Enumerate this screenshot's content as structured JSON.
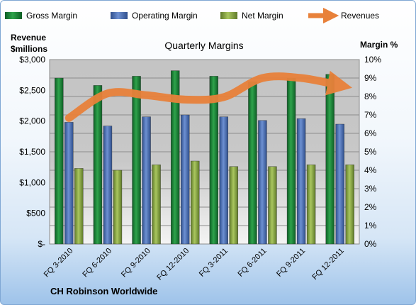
{
  "chart_data": {
    "type": "bar",
    "title": "Quarterly Margins",
    "footer": "CH Robinson Worldwide",
    "left_axis_title": [
      "Revenue",
      "$millions"
    ],
    "right_axis_title": "Margin %",
    "categories": [
      "FQ 3-2010",
      "FQ 6-2010",
      "FQ 9-2010",
      "FQ 12-2010",
      "FQ 3-2011",
      "FQ 6-2011",
      "FQ 9-2011",
      "FQ 12-2011"
    ],
    "left_ticks": [
      "$-",
      "$500",
      "$1,000",
      "$1,500",
      "$2,000",
      "$2,500",
      "$3,000"
    ],
    "right_ticks": [
      "0%",
      "1%",
      "2%",
      "3%",
      "4%",
      "5%",
      "6%",
      "7%",
      "8%",
      "9%",
      "10%"
    ],
    "ylim_left": [
      0,
      3000
    ],
    "ylim_right": [
      0,
      10
    ],
    "series": [
      {
        "name": "Gross Margin",
        "axis": "right",
        "color": "#1f8a3a",
        "values": [
          9.0,
          8.6,
          9.1,
          9.4,
          9.1,
          8.8,
          9.0,
          9.2
        ]
      },
      {
        "name": "Operating Margin",
        "axis": "right",
        "color": "#4a6fb5",
        "values": [
          6.6,
          6.4,
          6.9,
          7.0,
          6.9,
          6.7,
          6.8,
          6.5
        ]
      },
      {
        "name": "Net Margin",
        "axis": "right",
        "color": "#8fb04a",
        "values": [
          4.1,
          4.0,
          4.3,
          4.5,
          4.2,
          4.2,
          4.3,
          4.3
        ]
      },
      {
        "name": "Revenues",
        "axis": "left",
        "type": "line",
        "color": "#e8813a",
        "values": [
          2050,
          2450,
          2420,
          2350,
          2390,
          2700,
          2700,
          2580
        ]
      }
    ],
    "legend_position": "top",
    "grid": true
  }
}
